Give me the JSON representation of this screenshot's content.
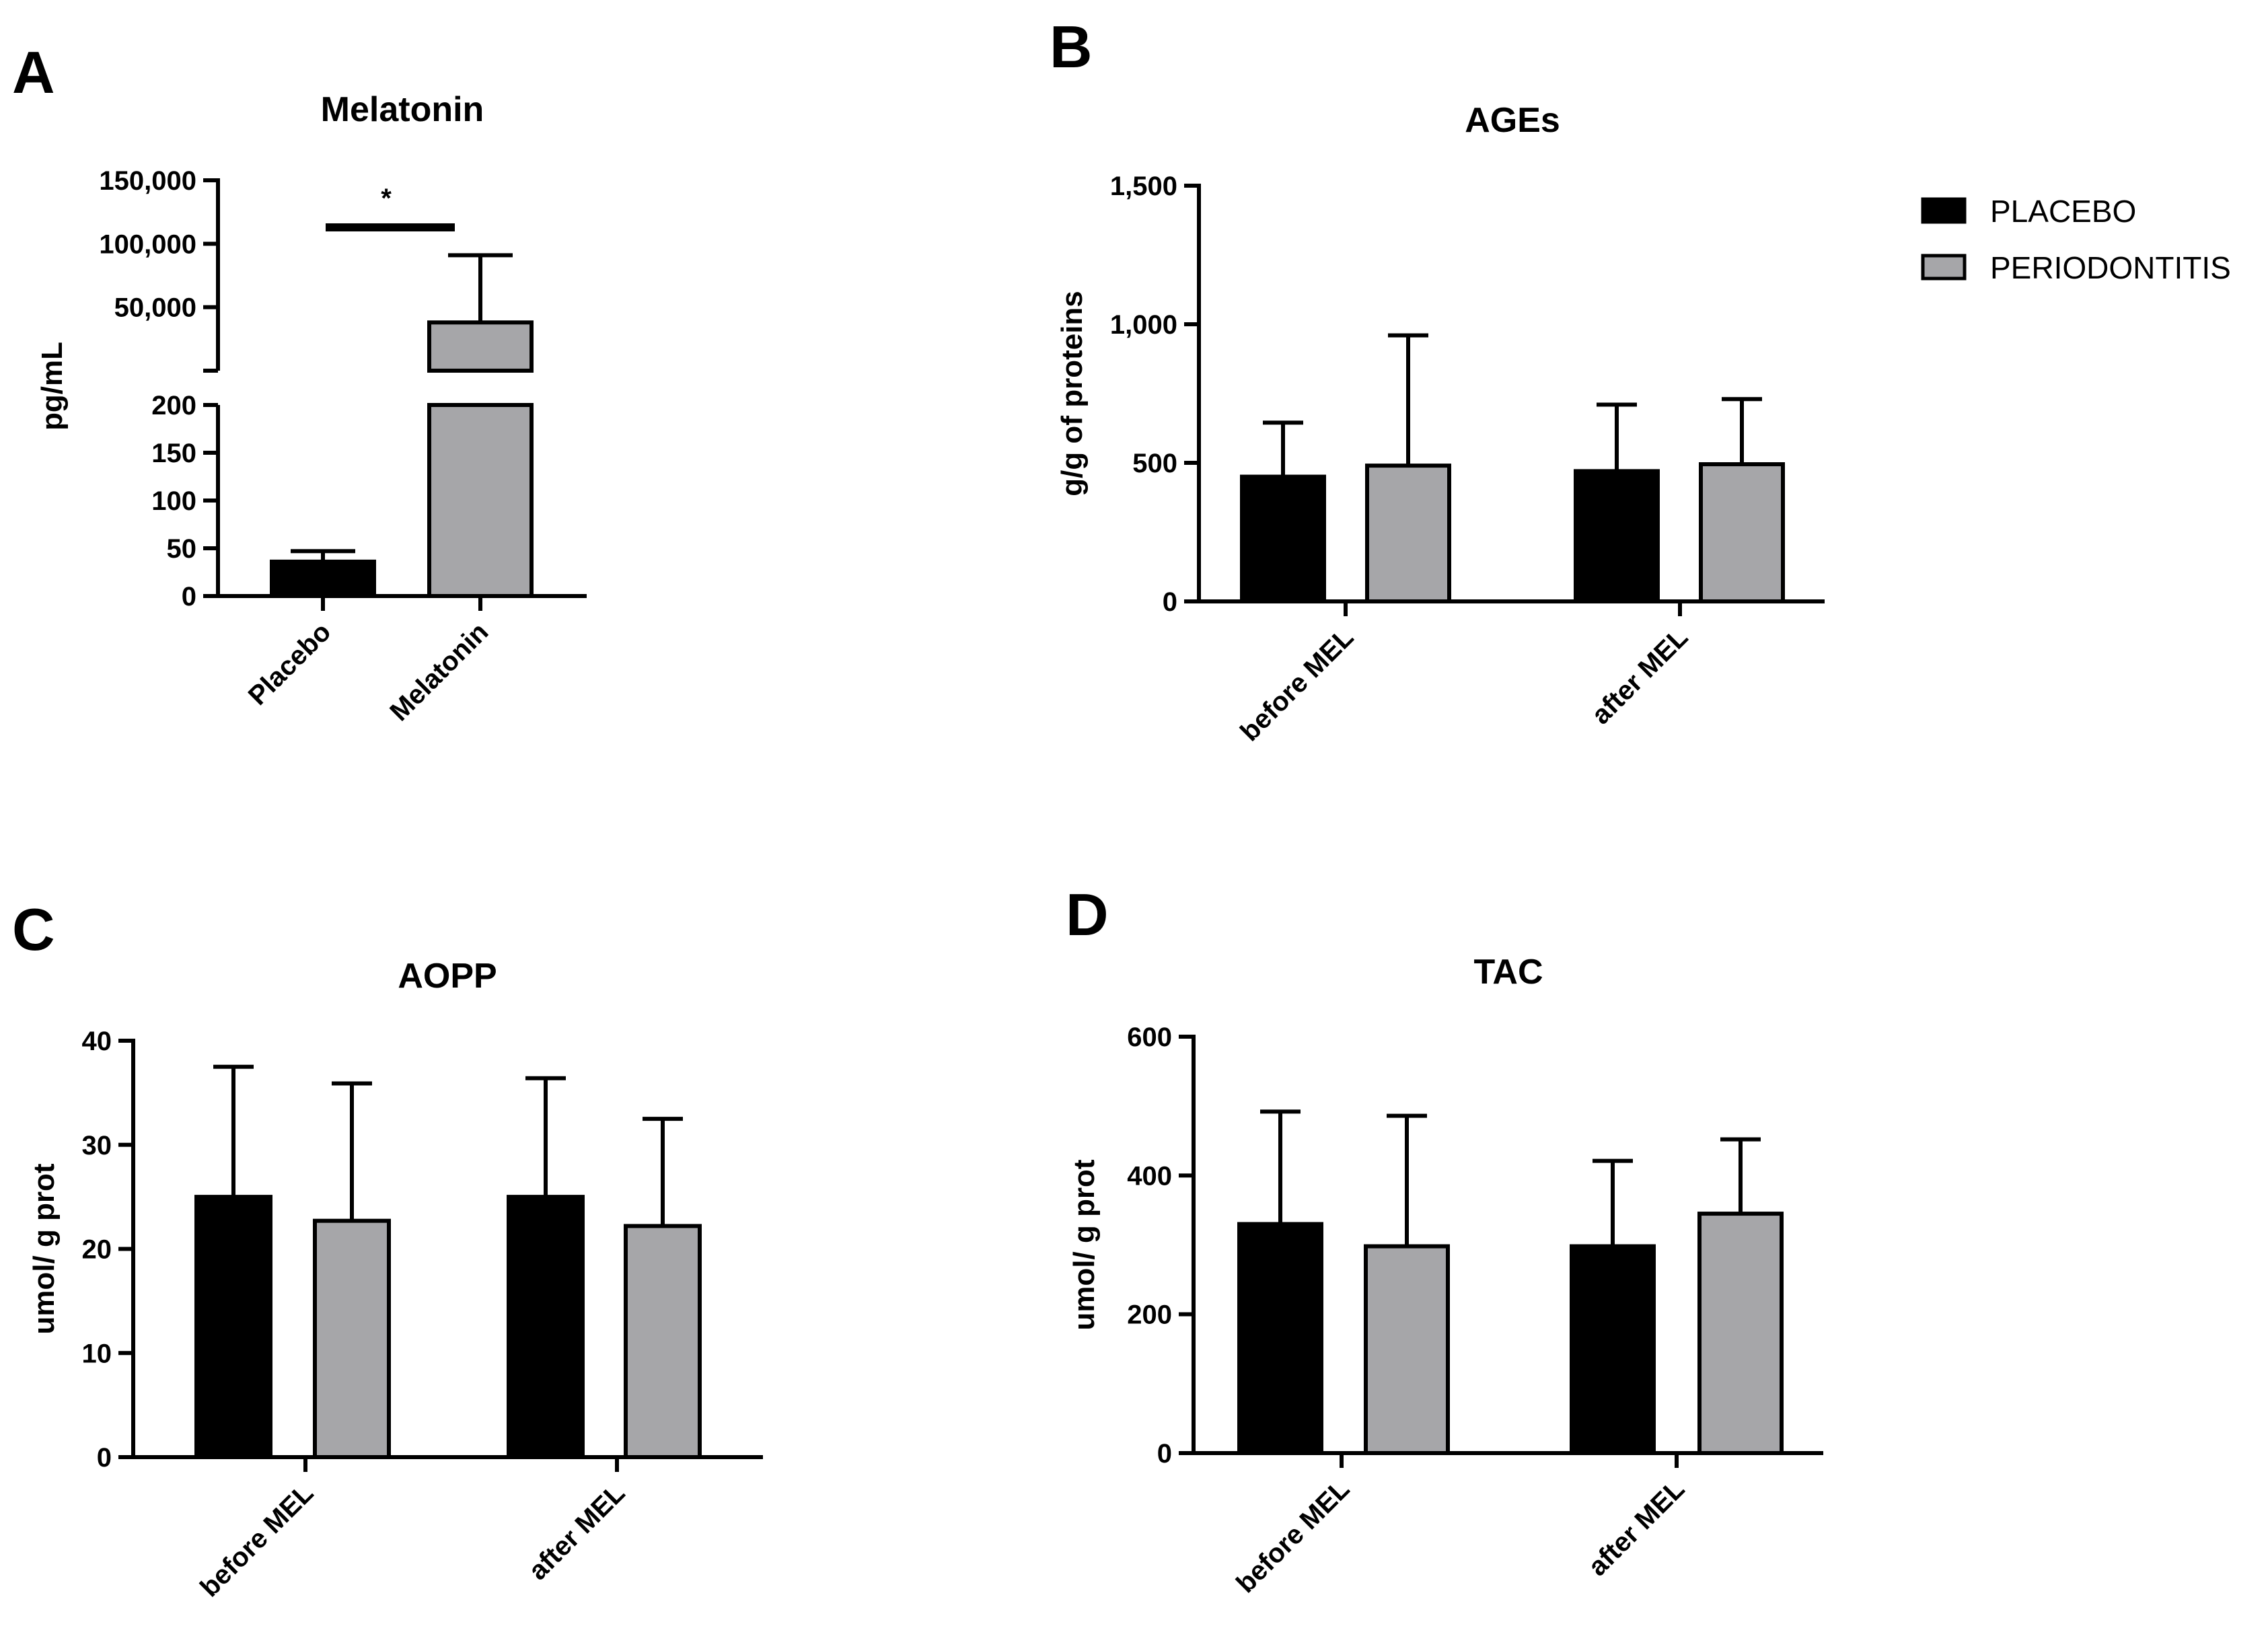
{
  "colors": {
    "placebo": "#000000",
    "periodontitis": "#a6a6a9",
    "axis": "#000000",
    "bar_stroke": "#000000"
  },
  "legend": {
    "items": [
      {
        "label": "PLACEBO",
        "color": "#000000"
      },
      {
        "label": "PERIODONTITIS",
        "color": "#a6a6a9"
      }
    ]
  },
  "chart_data": [
    {
      "id": "A",
      "panel_letter": "A",
      "type": "bar",
      "title": "Melatonin",
      "ylabel": "pg/mL",
      "xlabel": "",
      "broken_axis": true,
      "axis_segments": [
        {
          "range": [
            0,
            200
          ],
          "ticks": [
            0,
            50,
            100,
            150,
            200
          ],
          "tick_labels": [
            "0",
            "50",
            "100",
            "150",
            "200"
          ]
        },
        {
          "range": [
            0,
            150000
          ],
          "ticks": [
            50000,
            100000,
            150000
          ],
          "tick_labels": [
            "50,000",
            "100,000",
            "150,000"
          ]
        }
      ],
      "categories": [
        "Placebo",
        "Melatonin"
      ],
      "values": [
        36,
        38000
      ],
      "errors": [
        11,
        53000
      ],
      "bar_colors": [
        "#000000",
        "#a6a6a9"
      ],
      "significance": {
        "label": "*",
        "between": [
          "Placebo",
          "Melatonin"
        ]
      }
    },
    {
      "id": "B",
      "panel_letter": "B",
      "type": "bar",
      "title": "AGEs",
      "ylabel": "g/g of proteins",
      "xlabel": "",
      "ylim": [
        0,
        1500
      ],
      "ticks": [
        0,
        500,
        1000,
        1500
      ],
      "tick_labels": [
        "0",
        "500",
        "1,000",
        "1,500"
      ],
      "categories": [
        "before MEL",
        "after MEL"
      ],
      "series": [
        {
          "name": "PLACEBO",
          "values": [
            450,
            470
          ],
          "errors": [
            195,
            240
          ]
        },
        {
          "name": "PERIODONTITIS",
          "values": [
            490,
            495
          ],
          "errors": [
            470,
            235
          ]
        }
      ]
    },
    {
      "id": "C",
      "panel_letter": "C",
      "type": "bar",
      "title": "AOPP",
      "ylabel": "umol/ g prot",
      "xlabel": "",
      "ylim": [
        0,
        40
      ],
      "ticks": [
        0,
        10,
        20,
        30,
        40
      ],
      "tick_labels": [
        "0",
        "10",
        "20",
        "30",
        "40"
      ],
      "categories": [
        "before MEL",
        "after MEL"
      ],
      "series": [
        {
          "name": "PLACEBO",
          "values": [
            25.0,
            25.0
          ],
          "errors": [
            12.5,
            11.4
          ]
        },
        {
          "name": "PERIODONTITIS",
          "values": [
            22.7,
            22.2
          ],
          "errors": [
            13.2,
            10.3
          ]
        }
      ]
    },
    {
      "id": "D",
      "panel_letter": "D",
      "type": "bar",
      "title": "TAC",
      "ylabel": "umol/ g prot",
      "xlabel": "",
      "ylim": [
        0,
        600
      ],
      "ticks": [
        0,
        200,
        400,
        600
      ],
      "tick_labels": [
        "0",
        "200",
        "400",
        "600"
      ],
      "categories": [
        "before MEL",
        "after MEL"
      ],
      "series": [
        {
          "name": "PLACEBO",
          "values": [
            330,
            298
          ],
          "errors": [
            162,
            123
          ]
        },
        {
          "name": "PERIODONTITIS",
          "values": [
            298,
            345
          ],
          "errors": [
            188,
            107
          ]
        }
      ]
    }
  ]
}
